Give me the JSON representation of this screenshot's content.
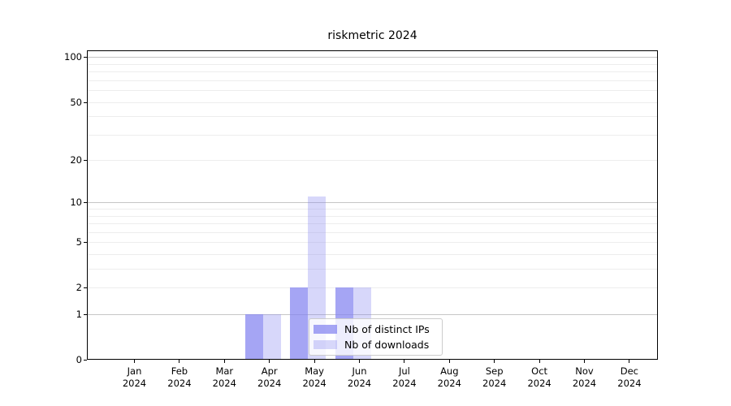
{
  "chart_data": {
    "type": "bar",
    "title": "riskmetric 2024",
    "categories": [
      "Jan",
      "Feb",
      "Mar",
      "Apr",
      "May",
      "Jun",
      "Jul",
      "Aug",
      "Sep",
      "Oct",
      "Nov",
      "Dec"
    ],
    "x_year_label": "2024",
    "series": [
      {
        "name": "Nb of distinct IPs",
        "color": "rgba(130,130,240,0.72)",
        "values": [
          0,
          0,
          0,
          1,
          2,
          2,
          0,
          0,
          0,
          0,
          0,
          0
        ]
      },
      {
        "name": "Nb of downloads",
        "color": "rgba(130,130,240,0.32)",
        "values": [
          0,
          0,
          0,
          1,
          11,
          2,
          0,
          0,
          0,
          0,
          0,
          0
        ]
      }
    ],
    "yscale": "log1p",
    "yticks": [
      0,
      1,
      2,
      5,
      10,
      20,
      50,
      100
    ],
    "ylim": [
      0,
      111
    ],
    "grid": "horizontal",
    "legend_position": "bottom-center",
    "colors": {
      "bar_distinct_ips": "#a6a6f2",
      "bar_downloads": "#dcdcf8",
      "grid_minor": "#ededed",
      "grid_major": "#c6c6c6",
      "axis": "#000000",
      "legend_border": "#cccccc"
    }
  }
}
